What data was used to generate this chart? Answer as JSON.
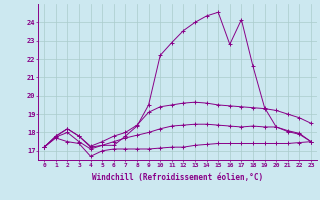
{
  "xlabel": "Windchill (Refroidissement éolien,°C)",
  "background_color": "#cce8f0",
  "grid_color": "#aacccc",
  "line_color": "#880088",
  "xlim": [
    -0.5,
    23.5
  ],
  "ylim": [
    16.5,
    25.0
  ],
  "xticks": [
    0,
    1,
    2,
    3,
    4,
    5,
    6,
    7,
    8,
    9,
    10,
    11,
    12,
    13,
    14,
    15,
    16,
    17,
    18,
    19,
    20,
    21,
    22,
    23
  ],
  "yticks": [
    17,
    18,
    19,
    20,
    21,
    22,
    23,
    24
  ],
  "line1_x": [
    0,
    1,
    2,
    3,
    4,
    5,
    6,
    7,
    8,
    9,
    10,
    11,
    12,
    13,
    14,
    15,
    16,
    17,
    18,
    19,
    20,
    21,
    22,
    23
  ],
  "line1_y": [
    17.2,
    17.7,
    17.5,
    17.4,
    16.7,
    17.0,
    17.1,
    17.1,
    17.1,
    17.1,
    17.15,
    17.2,
    17.2,
    17.3,
    17.35,
    17.4,
    17.4,
    17.4,
    17.4,
    17.4,
    17.4,
    17.4,
    17.45,
    17.5
  ],
  "line2_x": [
    0,
    1,
    2,
    3,
    4,
    5,
    6,
    7,
    8,
    9,
    10,
    11,
    12,
    13,
    14,
    15,
    16,
    17,
    18,
    19,
    20,
    21,
    22,
    23
  ],
  "line2_y": [
    17.2,
    17.75,
    18.0,
    17.5,
    17.1,
    17.3,
    17.5,
    17.7,
    17.85,
    18.0,
    18.2,
    18.35,
    18.4,
    18.45,
    18.45,
    18.4,
    18.35,
    18.3,
    18.35,
    18.3,
    18.3,
    18.1,
    17.95,
    17.5
  ],
  "line3_x": [
    0,
    1,
    2,
    3,
    4,
    5,
    6,
    7,
    8,
    9,
    10,
    11,
    12,
    13,
    14,
    15,
    16,
    17,
    18,
    19,
    20,
    21,
    22,
    23
  ],
  "line3_y": [
    17.2,
    17.8,
    18.2,
    17.8,
    17.25,
    17.5,
    17.8,
    18.0,
    18.4,
    19.1,
    19.4,
    19.5,
    19.6,
    19.65,
    19.6,
    19.5,
    19.45,
    19.4,
    19.35,
    19.3,
    19.2,
    19.0,
    18.8,
    18.5
  ],
  "line4_x": [
    0,
    1,
    2,
    3,
    4,
    5,
    6,
    7,
    8,
    9,
    10,
    11,
    12,
    13,
    14,
    15,
    16,
    17,
    18,
    19,
    20,
    21,
    22,
    23
  ],
  "line4_y": [
    17.2,
    17.8,
    18.2,
    17.8,
    17.2,
    17.3,
    17.3,
    17.8,
    18.35,
    19.5,
    22.2,
    22.9,
    23.55,
    24.0,
    24.35,
    24.55,
    22.8,
    24.15,
    21.6,
    19.35,
    18.3,
    18.05,
    17.9,
    17.5
  ]
}
